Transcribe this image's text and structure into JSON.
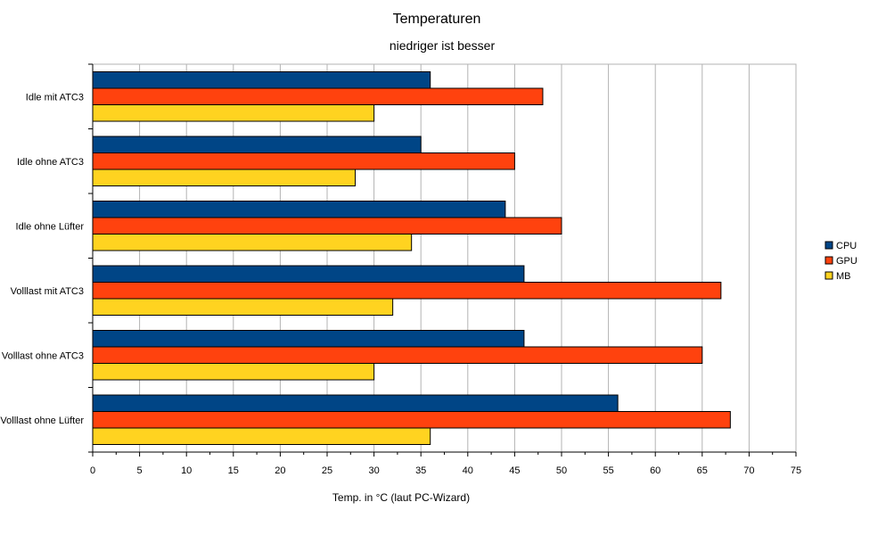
{
  "chart_data": {
    "type": "bar",
    "orientation": "horizontal",
    "title": "Temperaturen",
    "subtitle": "niedriger ist besser",
    "xlabel": "Temp. in °C (laut PC-Wizard)",
    "ylabel": "",
    "xlim": [
      0,
      75
    ],
    "xticks": [
      0,
      5,
      10,
      15,
      20,
      25,
      30,
      35,
      40,
      45,
      50,
      55,
      60,
      65,
      70,
      75
    ],
    "grid": true,
    "legend_position": "right",
    "categories": [
      "Idle mit ATC3",
      "Idle ohne ATC3",
      "Idle ohne Lüfter",
      "Volllast mit ATC3",
      "Volllast ohne ATC3",
      "Volllast ohne Lüfter"
    ],
    "series": [
      {
        "name": "CPU",
        "color": "#004586",
        "values": [
          36,
          35,
          44,
          46,
          46,
          56
        ]
      },
      {
        "name": "GPU",
        "color": "#ff420e",
        "values": [
          48,
          45,
          50,
          67,
          65,
          68
        ]
      },
      {
        "name": "MB",
        "color": "#ffd320",
        "values": [
          30,
          28,
          34,
          32,
          30,
          36
        ]
      }
    ]
  }
}
